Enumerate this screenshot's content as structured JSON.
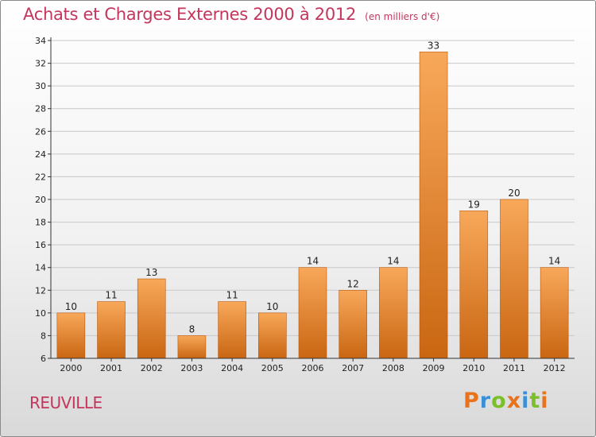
{
  "title": "Achats et Charges Externes 2000 à 2012",
  "unit": "(en milliers d'€)",
  "location": "REUVILLE",
  "brand": {
    "letters": [
      "P",
      "r",
      "o",
      "x",
      "i",
      "t",
      "i"
    ],
    "colors": [
      "#e8731c",
      "#3a8fd6",
      "#7bbf2a",
      "#e8731c",
      "#3a8fd6",
      "#7bbf2a",
      "#e8731c"
    ]
  },
  "colors": {
    "title": "#c4365c",
    "bar_top": "#f8a85a",
    "bar_bottom": "#c96612",
    "bar_edge": "#b85a10",
    "axis": "#333333",
    "grid": "#c8c8c8"
  },
  "chart_data": {
    "type": "bar",
    "categories": [
      "2000",
      "2001",
      "2002",
      "2003",
      "2004",
      "2005",
      "2006",
      "2007",
      "2008",
      "2009",
      "2010",
      "2011",
      "2012"
    ],
    "values": [
      10,
      11,
      13,
      8,
      11,
      10,
      14,
      12,
      14,
      33,
      19,
      20,
      14
    ],
    "ylim": [
      6,
      34
    ],
    "yticks": [
      6,
      8,
      10,
      12,
      14,
      16,
      18,
      20,
      22,
      24,
      26,
      28,
      30,
      32,
      34
    ],
    "grid": true,
    "data_labels": true
  }
}
